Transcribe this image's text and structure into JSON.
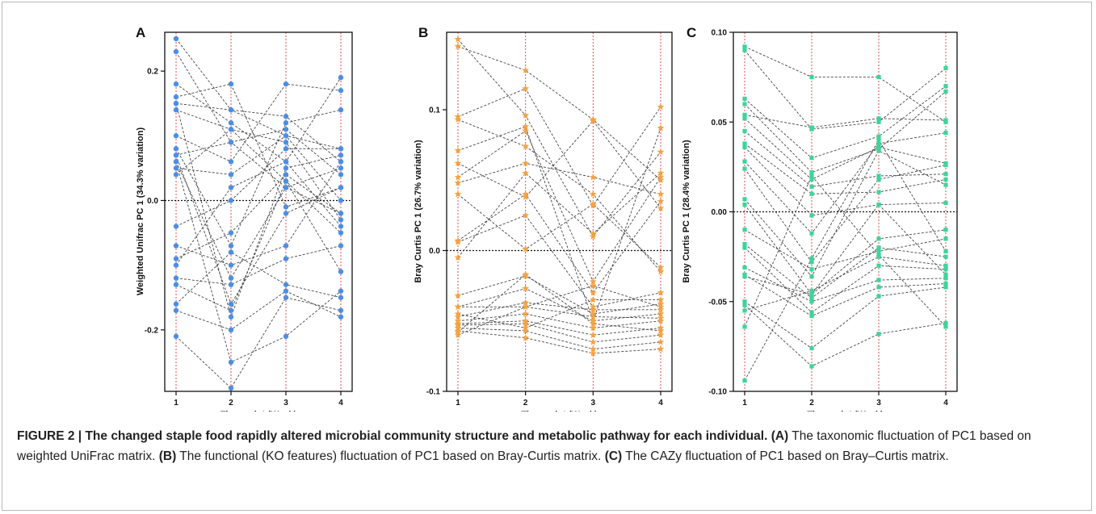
{
  "figure": {
    "caption_label": "FIGURE 2 |",
    "caption_title": "The changed staple food rapidly altered microbial community structure and metabolic pathway for each individual.",
    "caption_parts": [
      {
        "label": "(A)",
        "text": "The taxonomic fluctuation of PC1 based on weighted UniFrac matrix."
      },
      {
        "label": "(B)",
        "text": "The functional (KO features) fluctuation of PC1 based on Bray-Curtis matrix."
      },
      {
        "label": "(C)",
        "text": "The CAZy fluctuation of PC1 based on Bray–Curtis matrix."
      }
    ]
  },
  "chart_data": [
    {
      "type": "line",
      "panel_label": "A",
      "xlabel": "Time point (Week)",
      "ylabel": "Weighted Unifrac PC 1 (34.3% variation)",
      "x": [
        1,
        2,
        3,
        4
      ],
      "xticks": [
        "1",
        "2",
        "3",
        "4"
      ],
      "ylim": [
        -0.295,
        0.26
      ],
      "yticks": [
        0.2,
        0.0,
        -0.2
      ],
      "ytick_labels": [
        "0.2",
        "0.0",
        "-0.2"
      ],
      "marker": "circle",
      "color": "#4a8fe7",
      "series": [
        {
          "values": [
            0.25,
            0.14,
            0.1,
            0.08
          ]
        },
        {
          "values": [
            0.23,
            0.09,
            0.02,
            -0.02
          ]
        },
        {
          "values": [
            0.18,
            0.12,
            0.06,
            0.19
          ]
        },
        {
          "values": [
            0.16,
            0.18,
            -0.01,
            0.02
          ]
        },
        {
          "values": [
            0.15,
            0.14,
            0.13,
            0.06
          ]
        },
        {
          "values": [
            0.14,
            0.11,
            0.09,
            -0.03
          ]
        },
        {
          "values": [
            0.1,
            0.06,
            0.18,
            0.17
          ]
        },
        {
          "values": [
            0.08,
            -0.07,
            0.12,
            0.14
          ]
        },
        {
          "values": [
            0.07,
            0.09,
            0.11,
            0.04
          ]
        },
        {
          "values": [
            0.06,
            -0.12,
            0.02,
            0.05
          ]
        },
        {
          "values": [
            0.05,
            0.04,
            0.1,
            0.0
          ]
        },
        {
          "values": [
            0.04,
            0.11,
            0.03,
            -0.05
          ]
        },
        {
          "values": [
            -0.04,
            0.0,
            0.08,
            0.08
          ]
        },
        {
          "values": [
            -0.07,
            -0.1,
            -0.07,
            0.06
          ]
        },
        {
          "values": [
            -0.09,
            -0.05,
            0.04,
            -0.02
          ]
        },
        {
          "values": [
            -0.12,
            -0.13,
            -0.09,
            -0.07
          ]
        },
        {
          "values": [
            -0.13,
            -0.17,
            0.03,
            -0.11
          ]
        },
        {
          "values": [
            -0.16,
            -0.08,
            -0.13,
            -0.15
          ]
        },
        {
          "values": [
            -0.17,
            -0.2,
            -0.14,
            -0.18
          ]
        },
        {
          "values": [
            -0.21,
            -0.29,
            -0.15,
            -0.17
          ]
        },
        {
          "values": [
            0.06,
            -0.25,
            -0.21,
            -0.14
          ]
        },
        {
          "values": [
            0.07,
            -0.16,
            -0.02,
            0.02
          ]
        },
        {
          "values": [
            -0.1,
            0.02,
            0.06,
            -0.04
          ]
        },
        {
          "values": [
            0.15,
            -0.18,
            0.05,
            0.07
          ]
        }
      ]
    },
    {
      "type": "line",
      "panel_label": "B",
      "xlabel": "Time point (Week)",
      "ylabel": "Bray Curtis PC 1 (26.7% variation)",
      "x": [
        1,
        2,
        3,
        4
      ],
      "xticks": [
        "1",
        "2",
        "3",
        "4"
      ],
      "ylim": [
        -0.1,
        0.155
      ],
      "yticks": [
        0.1,
        0.0,
        -0.1
      ],
      "ytick_labels": [
        "0.1",
        "0.0",
        "-0.1"
      ],
      "marker": "star",
      "color": "#f4a245",
      "series": [
        {
          "values": [
            0.15,
            0.096,
            0.01,
            0.07
          ]
        },
        {
          "values": [
            0.145,
            0.128,
            0.093,
            0.05
          ]
        },
        {
          "values": [
            0.095,
            0.115,
            0.032,
            0.102
          ]
        },
        {
          "values": [
            0.093,
            0.074,
            0.04,
            -0.015
          ]
        },
        {
          "values": [
            0.071,
            0.088,
            -0.05,
            0.087
          ]
        },
        {
          "values": [
            0.062,
            0.038,
            0.092,
            0.03
          ]
        },
        {
          "values": [
            0.052,
            0.085,
            -0.022,
            0.052
          ]
        },
        {
          "values": [
            0.048,
            0.062,
            0.052,
            0.04
          ]
        },
        {
          "values": [
            0.04,
            0.001,
            0.033,
            -0.012
          ]
        },
        {
          "values": [
            0.007,
            0.04,
            -0.03,
            0.035
          ]
        },
        {
          "values": [
            0.006,
            0.025,
            -0.04,
            -0.03
          ]
        },
        {
          "values": [
            -0.005,
            0.055,
            0.012,
            0.055
          ]
        },
        {
          "values": [
            -0.032,
            -0.018,
            -0.045,
            -0.038
          ]
        },
        {
          "values": [
            -0.04,
            -0.027,
            -0.05,
            -0.045
          ]
        },
        {
          "values": [
            -0.047,
            -0.037,
            -0.042,
            -0.042
          ]
        },
        {
          "values": [
            -0.05,
            -0.045,
            -0.055,
            -0.05
          ]
        },
        {
          "values": [
            -0.052,
            -0.05,
            -0.06,
            -0.055
          ]
        },
        {
          "values": [
            -0.053,
            -0.052,
            -0.065,
            -0.06
          ]
        },
        {
          "values": [
            -0.055,
            -0.057,
            -0.07,
            -0.065
          ]
        },
        {
          "values": [
            -0.057,
            -0.062,
            -0.073,
            -0.07
          ]
        },
        {
          "values": [
            -0.04,
            -0.04,
            -0.047,
            -0.048
          ]
        },
        {
          "values": [
            -0.045,
            -0.055,
            -0.035,
            -0.035
          ]
        },
        {
          "values": [
            -0.058,
            -0.017,
            -0.052,
            -0.057
          ]
        },
        {
          "values": [
            -0.06,
            -0.04,
            -0.025,
            -0.04
          ]
        }
      ]
    },
    {
      "type": "line",
      "panel_label": "C",
      "xlabel": "Time point (Week)",
      "ylabel": "Bray Curtis PC 1 (28.4% variation)",
      "x": [
        1,
        2,
        3,
        4
      ],
      "xticks": [
        "1",
        "2",
        "3",
        "4"
      ],
      "ylim": [
        -0.1,
        0.1
      ],
      "yticks": [
        0.1,
        0.05,
        0.0,
        -0.05,
        -0.1
      ],
      "ytick_labels": [
        "0.10",
        "0.05",
        "0.00",
        "-0.05",
        "-0.10"
      ],
      "marker": "square",
      "color": "#3ed49a",
      "series": [
        {
          "values": [
            0.092,
            0.075,
            0.075,
            0.05
          ]
        },
        {
          "values": [
            0.09,
            0.046,
            0.05,
            0.08
          ]
        },
        {
          "values": [
            0.063,
            0.03,
            0.042,
            0.07
          ]
        },
        {
          "values": [
            0.06,
            0.022,
            0.035,
            0.067
          ]
        },
        {
          "values": [
            0.054,
            0.047,
            0.052,
            0.051
          ]
        },
        {
          "values": [
            0.052,
            0.018,
            0.036,
            0.027
          ]
        },
        {
          "values": [
            0.045,
            0.014,
            0.02,
            0.021
          ]
        },
        {
          "values": [
            0.038,
            0.01,
            0.011,
            0.018
          ]
        },
        {
          "values": [
            0.036,
            -0.002,
            0.004,
            0.005
          ]
        },
        {
          "values": [
            0.028,
            -0.012,
            0.038,
            0.044
          ]
        },
        {
          "values": [
            0.024,
            -0.028,
            0.018,
            0.026
          ]
        },
        {
          "values": [
            0.007,
            -0.036,
            0.034,
            0.015
          ]
        },
        {
          "values": [
            0.004,
            -0.046,
            -0.015,
            -0.01
          ]
        },
        {
          "values": [
            -0.01,
            -0.032,
            -0.022,
            -0.015
          ]
        },
        {
          "values": [
            -0.018,
            -0.048,
            -0.02,
            -0.025
          ]
        },
        {
          "values": [
            -0.02,
            -0.056,
            -0.03,
            -0.032
          ]
        },
        {
          "values": [
            -0.031,
            -0.05,
            -0.038,
            -0.037
          ]
        },
        {
          "values": [
            -0.035,
            -0.058,
            -0.042,
            -0.04
          ]
        },
        {
          "values": [
            -0.05,
            -0.076,
            -0.047,
            -0.042
          ]
        },
        {
          "values": [
            -0.052,
            -0.086,
            -0.068,
            -0.062
          ]
        },
        {
          "values": [
            -0.055,
            -0.044,
            -0.025,
            -0.03
          ]
        },
        {
          "values": [
            -0.064,
            0.02,
            -0.024,
            -0.064
          ]
        },
        {
          "values": [
            -0.094,
            -0.026,
            0.04,
            -0.022
          ]
        },
        {
          "values": [
            -0.036,
            -0.046,
            0.004,
            -0.035
          ]
        }
      ]
    }
  ]
}
